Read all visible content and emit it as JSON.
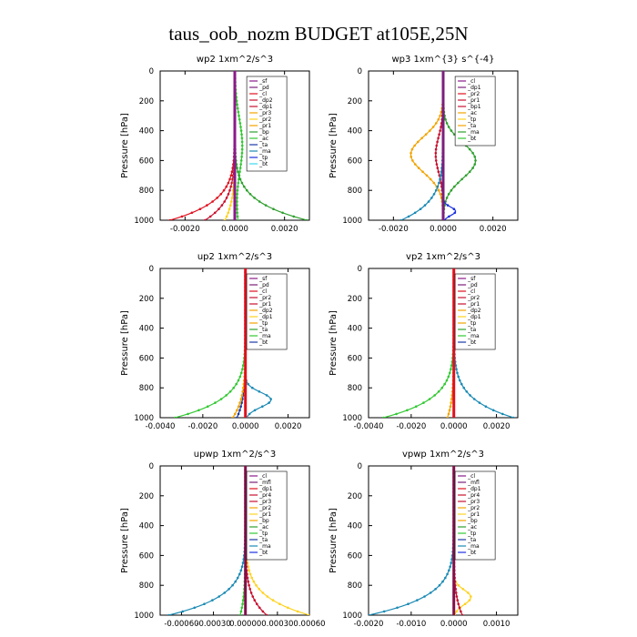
{
  "title": "taus_oob_nozm  BUDGET at105E,25N",
  "colors": {
    "sf": "#8a1a8a",
    "pd": "#7b1f7b",
    "cl": "#e0101e",
    "dp": "#c8102e",
    "pr": "#f2a400",
    "prY": "#ffd21f",
    "bp": "#2ea02e",
    "ac": "#32c832",
    "tp": "#1a2fe0",
    "ta": "#1a3aa8",
    "ma": "#1a8ab4",
    "bt": "#38d8f0",
    "mfl": "#80104a"
  },
  "chart_data": [
    {
      "type": "line",
      "title": "wp2  1xm^2/s^3",
      "ylabel": "Pressure [hPa]",
      "ylim": [
        0,
        1000
      ],
      "xlim": [
        -0.003,
        0.003
      ],
      "xticks": [
        "-0.0020",
        "0.0000",
        "0.0020"
      ],
      "xtick_values": [
        -0.002,
        0.0,
        0.002
      ],
      "yticks": [
        "0",
        "200",
        "400",
        "600",
        "800",
        "1000"
      ],
      "legend": [
        "_sf",
        "_pd",
        "_cl",
        "_dp2",
        "_dp1",
        "_pr3",
        "_pr2",
        "_pr1",
        "_bp",
        "_ac",
        "_ta",
        "_ma",
        "_tp",
        "_bt"
      ],
      "series": [
        {
          "name": "_cl",
          "color": "cl",
          "shape": "left",
          "amp": 0.0026
        },
        {
          "name": "_dp2",
          "color": "dp",
          "shape": "left",
          "amp": 0.0012
        },
        {
          "name": "_pr2",
          "color": "prY",
          "shape": "left",
          "amp": 0.0004
        },
        {
          "name": "_ac",
          "color": "ac",
          "shape": "bump",
          "amp": 0.0003
        },
        {
          "name": "_bp",
          "color": "bp",
          "shape": "right",
          "amp": 0.0029
        },
        {
          "name": "_sf",
          "color": "sf",
          "shape": "flat",
          "amp": 0.0
        }
      ]
    },
    {
      "type": "line",
      "title": "wp3  1xm^{3} s^{-4}",
      "ylabel": "Pressure [hPa]",
      "ylim": [
        0,
        1000
      ],
      "xlim": [
        -0.003,
        0.003
      ],
      "xticks": [
        "-0.0020",
        "0.0000",
        "0.0020"
      ],
      "xtick_values": [
        -0.002,
        0.0,
        0.002
      ],
      "yticks": [
        "0",
        "200",
        "400",
        "600",
        "800",
        "1000"
      ],
      "legend": [
        "_cl",
        "_dp1",
        "_pr2",
        "_pr1",
        "_bp1",
        "_ac",
        "_tp",
        "_ta",
        "_ma",
        "_bt"
      ],
      "series": [
        {
          "name": "_pr2",
          "color": "pr",
          "shape": "lobeL",
          "amp": 0.0013
        },
        {
          "name": "_ac",
          "color": "bp",
          "shape": "lobeR",
          "amp": 0.0013
        },
        {
          "name": "_dp1",
          "color": "dp",
          "shape": "lobeL",
          "amp": 0.0003
        },
        {
          "name": "_tp",
          "color": "tp",
          "shape": "lobeRlow",
          "amp": 0.0005
        },
        {
          "name": "_ma",
          "color": "ma",
          "shape": "left",
          "amp": 0.0017
        },
        {
          "name": "_cl",
          "color": "pd",
          "shape": "flat",
          "amp": 0.0
        }
      ]
    },
    {
      "type": "line",
      "title": "up2  1xm^2/s^3",
      "ylabel": "Pressure [hPa]",
      "ylim": [
        0,
        1000
      ],
      "xlim": [
        -0.004,
        0.003
      ],
      "xticks": [
        "-0.0040",
        "-0.0020",
        "0.0000",
        "0.0020"
      ],
      "xtick_values": [
        -0.004,
        -0.002,
        0.0,
        0.002
      ],
      "yticks": [
        "0",
        "200",
        "400",
        "600",
        "800",
        "1000"
      ],
      "legend": [
        "_sf",
        "_pd",
        "_cl",
        "_pr2",
        "_pr1",
        "_dp2",
        "_dp1",
        "_tp",
        "_ta",
        "_ma",
        "_bt"
      ],
      "series": [
        {
          "name": "_dp2",
          "color": "ac",
          "shape": "left",
          "amp": 0.0033
        },
        {
          "name": "_ma",
          "color": "ma",
          "shape": "rightBump",
          "amp": 0.0012
        },
        {
          "name": "_ta",
          "color": "ta",
          "shape": "left",
          "amp": 0.0004
        },
        {
          "name": "_pr2",
          "color": "pr",
          "shape": "left",
          "amp": 0.0006
        },
        {
          "name": "_cl",
          "color": "cl",
          "shape": "flat",
          "amp": 0.0
        }
      ]
    },
    {
      "type": "line",
      "title": "vp2  1xm^2/s^3",
      "ylabel": "Pressure [hPa]",
      "ylim": [
        0,
        1000
      ],
      "xlim": [
        -0.004,
        0.003
      ],
      "xticks": [
        "-0.0040",
        "-0.0020",
        "0.0000",
        "0.0020"
      ],
      "xtick_values": [
        -0.004,
        -0.002,
        0.0,
        0.002
      ],
      "yticks": [
        "0",
        "200",
        "400",
        "600",
        "800",
        "1000"
      ],
      "legend": [
        "_sf",
        "_pd",
        "_cl",
        "_pr2",
        "_pr1",
        "_dp2",
        "_dp1",
        "_tp",
        "_ta",
        "_ma",
        "_bt"
      ],
      "series": [
        {
          "name": "_dp2",
          "color": "ac",
          "shape": "left",
          "amp": 0.0033
        },
        {
          "name": "_ma",
          "color": "ma",
          "shape": "right",
          "amp": 0.0028
        },
        {
          "name": "_pr2",
          "color": "pr",
          "shape": "left",
          "amp": 0.0003
        },
        {
          "name": "_cl",
          "color": "cl",
          "shape": "flat",
          "amp": 0.0
        }
      ]
    },
    {
      "type": "line",
      "title": "upwp  1xm^2/s^3",
      "ylabel": "Pressure [hPa]",
      "ylim": [
        0,
        1000
      ],
      "xlim": [
        -0.0008,
        0.0006
      ],
      "xticks": [
        "-0.00060",
        "-0.00030",
        "0.00000",
        "0.00030",
        "0.00060"
      ],
      "xtick_values": [
        -0.0006,
        -0.0003,
        0.0,
        0.0003,
        0.0006
      ],
      "yticks": [
        "0",
        "200",
        "400",
        "600",
        "800",
        "1000"
      ],
      "legend": [
        "_cl",
        "_mfl",
        "_dp1",
        "_pr4",
        "_pr3",
        "_pr2",
        "_pr1",
        "_bp",
        "_ac",
        "_tp",
        "_ta",
        "_ma",
        "_bt"
      ],
      "series": [
        {
          "name": "_ma",
          "color": "ma",
          "shape": "left",
          "amp": 0.00072
        },
        {
          "name": "_pr2",
          "color": "prY",
          "shape": "right",
          "amp": 0.0006
        },
        {
          "name": "_dp1",
          "color": "dp",
          "shape": "right",
          "amp": 0.0002
        },
        {
          "name": "_bp",
          "color": "ac",
          "shape": "left",
          "amp": 5e-05
        },
        {
          "name": "_mfl",
          "color": "mfl",
          "shape": "flat",
          "amp": 0.0
        }
      ]
    },
    {
      "type": "line",
      "title": "vpwp  1xm^2/s^3",
      "ylabel": "Pressure [hPa]",
      "ylim": [
        0,
        1000
      ],
      "xlim": [
        -0.002,
        0.0015
      ],
      "xticks": [
        "-0.0020",
        "-0.0010",
        "0.0000",
        "0.0010"
      ],
      "xtick_values": [
        -0.002,
        -0.001,
        0.0,
        0.001
      ],
      "yticks": [
        "0",
        "200",
        "400",
        "600",
        "800",
        "1000"
      ],
      "legend": [
        "_cl",
        "_mfl",
        "_dp1",
        "_pr4",
        "_pr3",
        "_pr2",
        "_pr1",
        "_bp",
        "_ac",
        "_tp",
        "_ta",
        "_ma",
        "_bt"
      ],
      "series": [
        {
          "name": "_ma",
          "color": "ma",
          "shape": "left",
          "amp": 0.002
        },
        {
          "name": "_pr2",
          "color": "prY",
          "shape": "rightBump",
          "amp": 0.0004
        },
        {
          "name": "_dp1",
          "color": "dp",
          "shape": "right",
          "amp": 0.0002
        },
        {
          "name": "_mfl",
          "color": "mfl",
          "shape": "flat",
          "amp": 0.0
        }
      ]
    }
  ]
}
